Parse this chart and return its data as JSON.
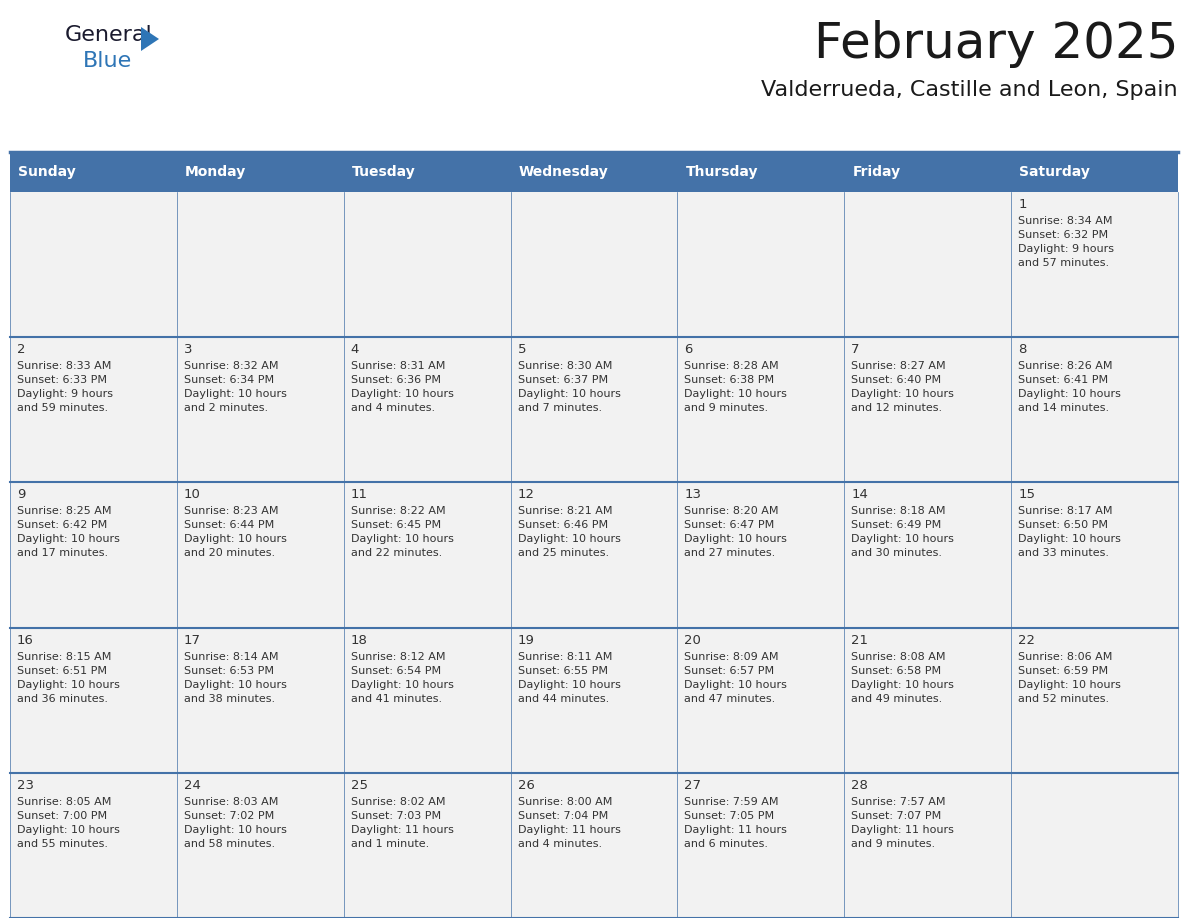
{
  "title": "February 2025",
  "subtitle": "Valderrueda, Castille and Leon, Spain",
  "header_bg": "#4472a8",
  "header_text_color": "#ffffff",
  "cell_bg": "#f2f2f2",
  "day_names": [
    "Sunday",
    "Monday",
    "Tuesday",
    "Wednesday",
    "Thursday",
    "Friday",
    "Saturday"
  ],
  "header_line_color": "#3a6593",
  "row_line_color": "#4472a8",
  "text_color": "#333333",
  "days": [
    {
      "day": 1,
      "col": 6,
      "row": 0,
      "sunrise": "8:34 AM",
      "sunset": "6:32 PM",
      "daylight1": "9 hours",
      "daylight2": "and 57 minutes."
    },
    {
      "day": 2,
      "col": 0,
      "row": 1,
      "sunrise": "8:33 AM",
      "sunset": "6:33 PM",
      "daylight1": "9 hours",
      "daylight2": "and 59 minutes."
    },
    {
      "day": 3,
      "col": 1,
      "row": 1,
      "sunrise": "8:32 AM",
      "sunset": "6:34 PM",
      "daylight1": "10 hours",
      "daylight2": "and 2 minutes."
    },
    {
      "day": 4,
      "col": 2,
      "row": 1,
      "sunrise": "8:31 AM",
      "sunset": "6:36 PM",
      "daylight1": "10 hours",
      "daylight2": "and 4 minutes."
    },
    {
      "day": 5,
      "col": 3,
      "row": 1,
      "sunrise": "8:30 AM",
      "sunset": "6:37 PM",
      "daylight1": "10 hours",
      "daylight2": "and 7 minutes."
    },
    {
      "day": 6,
      "col": 4,
      "row": 1,
      "sunrise": "8:28 AM",
      "sunset": "6:38 PM",
      "daylight1": "10 hours",
      "daylight2": "and 9 minutes."
    },
    {
      "day": 7,
      "col": 5,
      "row": 1,
      "sunrise": "8:27 AM",
      "sunset": "6:40 PM",
      "daylight1": "10 hours",
      "daylight2": "and 12 minutes."
    },
    {
      "day": 8,
      "col": 6,
      "row": 1,
      "sunrise": "8:26 AM",
      "sunset": "6:41 PM",
      "daylight1": "10 hours",
      "daylight2": "and 14 minutes."
    },
    {
      "day": 9,
      "col": 0,
      "row": 2,
      "sunrise": "8:25 AM",
      "sunset": "6:42 PM",
      "daylight1": "10 hours",
      "daylight2": "and 17 minutes."
    },
    {
      "day": 10,
      "col": 1,
      "row": 2,
      "sunrise": "8:23 AM",
      "sunset": "6:44 PM",
      "daylight1": "10 hours",
      "daylight2": "and 20 minutes."
    },
    {
      "day": 11,
      "col": 2,
      "row": 2,
      "sunrise": "8:22 AM",
      "sunset": "6:45 PM",
      "daylight1": "10 hours",
      "daylight2": "and 22 minutes."
    },
    {
      "day": 12,
      "col": 3,
      "row": 2,
      "sunrise": "8:21 AM",
      "sunset": "6:46 PM",
      "daylight1": "10 hours",
      "daylight2": "and 25 minutes."
    },
    {
      "day": 13,
      "col": 4,
      "row": 2,
      "sunrise": "8:20 AM",
      "sunset": "6:47 PM",
      "daylight1": "10 hours",
      "daylight2": "and 27 minutes."
    },
    {
      "day": 14,
      "col": 5,
      "row": 2,
      "sunrise": "8:18 AM",
      "sunset": "6:49 PM",
      "daylight1": "10 hours",
      "daylight2": "and 30 minutes."
    },
    {
      "day": 15,
      "col": 6,
      "row": 2,
      "sunrise": "8:17 AM",
      "sunset": "6:50 PM",
      "daylight1": "10 hours",
      "daylight2": "and 33 minutes."
    },
    {
      "day": 16,
      "col": 0,
      "row": 3,
      "sunrise": "8:15 AM",
      "sunset": "6:51 PM",
      "daylight1": "10 hours",
      "daylight2": "and 36 minutes."
    },
    {
      "day": 17,
      "col": 1,
      "row": 3,
      "sunrise": "8:14 AM",
      "sunset": "6:53 PM",
      "daylight1": "10 hours",
      "daylight2": "and 38 minutes."
    },
    {
      "day": 18,
      "col": 2,
      "row": 3,
      "sunrise": "8:12 AM",
      "sunset": "6:54 PM",
      "daylight1": "10 hours",
      "daylight2": "and 41 minutes."
    },
    {
      "day": 19,
      "col": 3,
      "row": 3,
      "sunrise": "8:11 AM",
      "sunset": "6:55 PM",
      "daylight1": "10 hours",
      "daylight2": "and 44 minutes."
    },
    {
      "day": 20,
      "col": 4,
      "row": 3,
      "sunrise": "8:09 AM",
      "sunset": "6:57 PM",
      "daylight1": "10 hours",
      "daylight2": "and 47 minutes."
    },
    {
      "day": 21,
      "col": 5,
      "row": 3,
      "sunrise": "8:08 AM",
      "sunset": "6:58 PM",
      "daylight1": "10 hours",
      "daylight2": "and 49 minutes."
    },
    {
      "day": 22,
      "col": 6,
      "row": 3,
      "sunrise": "8:06 AM",
      "sunset": "6:59 PM",
      "daylight1": "10 hours",
      "daylight2": "and 52 minutes."
    },
    {
      "day": 23,
      "col": 0,
      "row": 4,
      "sunrise": "8:05 AM",
      "sunset": "7:00 PM",
      "daylight1": "10 hours",
      "daylight2": "and 55 minutes."
    },
    {
      "day": 24,
      "col": 1,
      "row": 4,
      "sunrise": "8:03 AM",
      "sunset": "7:02 PM",
      "daylight1": "10 hours",
      "daylight2": "and 58 minutes."
    },
    {
      "day": 25,
      "col": 2,
      "row": 4,
      "sunrise": "8:02 AM",
      "sunset": "7:03 PM",
      "daylight1": "11 hours",
      "daylight2": "and 1 minute."
    },
    {
      "day": 26,
      "col": 3,
      "row": 4,
      "sunrise": "8:00 AM",
      "sunset": "7:04 PM",
      "daylight1": "11 hours",
      "daylight2": "and 4 minutes."
    },
    {
      "day": 27,
      "col": 4,
      "row": 4,
      "sunrise": "7:59 AM",
      "sunset": "7:05 PM",
      "daylight1": "11 hours",
      "daylight2": "and 6 minutes."
    },
    {
      "day": 28,
      "col": 5,
      "row": 4,
      "sunrise": "7:57 AM",
      "sunset": "7:07 PM",
      "daylight1": "11 hours",
      "daylight2": "and 9 minutes."
    }
  ]
}
